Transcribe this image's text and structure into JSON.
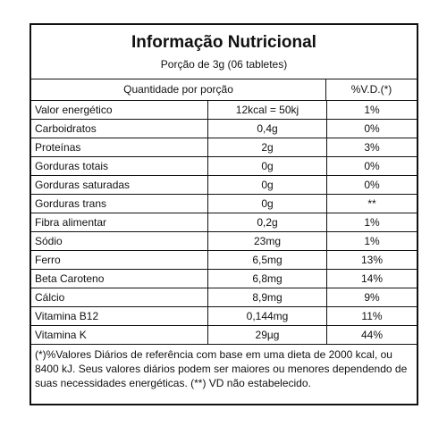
{
  "title": "Informação Nutricional",
  "subtitle": "Porção de 3g (06 tabletes)",
  "columns": {
    "amount": "Quantidade por porção",
    "dv": "%V.D.(*)"
  },
  "rows": [
    {
      "name": "Valor energético",
      "amount": "12kcal = 50kj",
      "dv": "1%"
    },
    {
      "name": "Carboidratos",
      "amount": "0,4g",
      "dv": "0%"
    },
    {
      "name": "Proteínas",
      "amount": "2g",
      "dv": "3%"
    },
    {
      "name": "Gorduras totais",
      "amount": "0g",
      "dv": "0%"
    },
    {
      "name": "Gorduras saturadas",
      "amount": "0g",
      "dv": "0%"
    },
    {
      "name": "Gorduras trans",
      "amount": "0g",
      "dv": "**"
    },
    {
      "name": "Fibra alimentar",
      "amount": "0,2g",
      "dv": "1%"
    },
    {
      "name": "Sódio",
      "amount": "23mg",
      "dv": "1%"
    },
    {
      "name": "Ferro",
      "amount": "6,5mg",
      "dv": "13%"
    },
    {
      "name": "Beta Caroteno",
      "amount": "6,8mg",
      "dv": "14%"
    },
    {
      "name": "Cálcio",
      "amount": "8,9mg",
      "dv": "9%"
    },
    {
      "name": "Vitamina B12",
      "amount": "0,144mg",
      "dv": "11%"
    },
    {
      "name": "Vitamina K",
      "amount": "29µg",
      "dv": "44%"
    }
  ],
  "footnote": "(*)%Valores Diários de referência com base em uma dieta de 2000 kcal, ou 8400 kJ. Seus valores diários podem ser maiores ou menores dependendo de suas necessidades energéticas. (**) VD não estabelecido."
}
